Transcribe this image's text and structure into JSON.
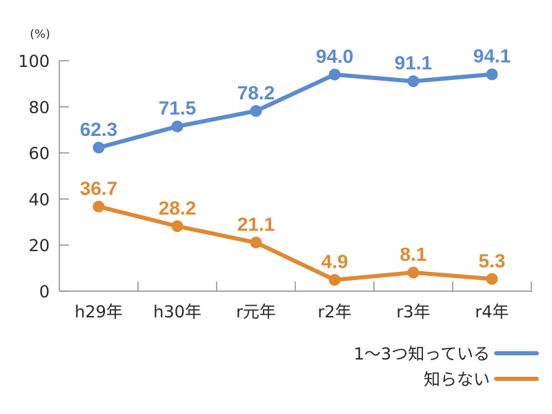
{
  "chart_data": {
    "type": "line",
    "title": "",
    "xlabel": "",
    "ylabel": "(%)",
    "ylim": [
      0,
      100
    ],
    "yticks": [
      "0",
      "20",
      "40",
      "60",
      "80",
      "100"
    ],
    "ytick_values": [
      0,
      20,
      40,
      60,
      80,
      100
    ],
    "grid": false,
    "categories": [
      "h29年",
      "h30年",
      "r元年",
      "r2年",
      "r3年",
      "r4年"
    ],
    "legend_position": "bottom-right",
    "series": [
      {
        "name": "1〜3つ知っている",
        "color": "#5b8bd0",
        "values": [
          62.3,
          71.5,
          78.2,
          94.0,
          91.1,
          94.1
        ],
        "labels": [
          "62.3",
          "71.5",
          "78.2",
          "94.0",
          "91.1",
          "94.1"
        ]
      },
      {
        "name": "知らない",
        "color": "#df8a33",
        "values": [
          36.7,
          28.2,
          21.1,
          4.9,
          8.1,
          5.3
        ],
        "labels": [
          "36.7",
          "28.2",
          "21.1",
          "4.9",
          "8.1",
          "5.3"
        ]
      }
    ]
  }
}
